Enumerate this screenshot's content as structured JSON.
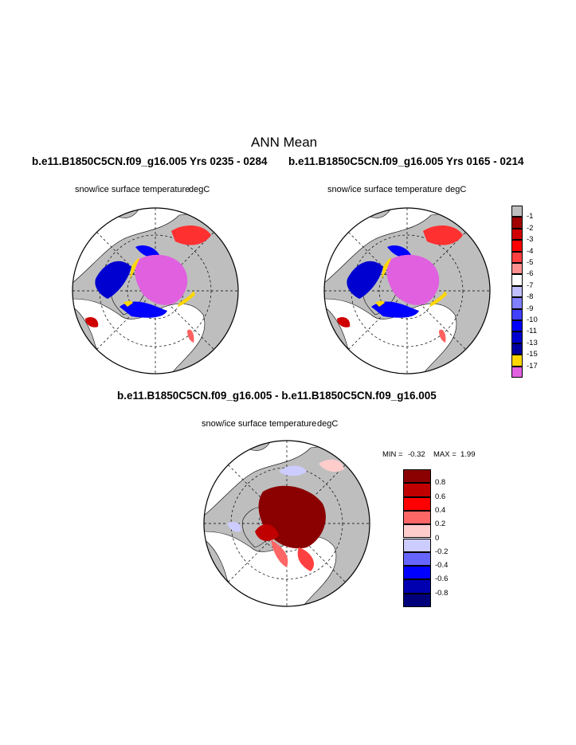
{
  "page_title": "ANN Mean",
  "chart_data": [
    {
      "type": "heatmap",
      "projection": "north polar stereographic",
      "title": "b.e11.B1850C5CN.f09_g16.005  Yrs 0235 - 0284",
      "subtitle_left": "snow/ice surface temperature",
      "subtitle_right": "degC"
    },
    {
      "type": "heatmap",
      "projection": "north polar stereographic",
      "title": "b.e11.B1850C5CN.f09_g16.005  Yrs 0165 - 0214",
      "subtitle_left": "snow/ice surface temperature",
      "subtitle_right": "degC"
    },
    {
      "type": "heatmap",
      "projection": "north polar stereographic",
      "title": "b.e11.B1850C5CN.f09_g16.005 - b.e11.B1850C5CN.f09_g16.005",
      "subtitle_left": "snow/ice surface temperature",
      "subtitle_right": "degC",
      "min_label": "MIN =",
      "min_value": "-0.32",
      "max_label": "MAX =",
      "max_value": "1.99"
    }
  ],
  "colorbar_top": {
    "labels": [
      "-1",
      "-2",
      "-3",
      "-4",
      "-5",
      "-6",
      "-7",
      "-8",
      "-9",
      "-10",
      "-11",
      "-13",
      "-15",
      "-17"
    ],
    "colors": [
      "#bebebe",
      "#a00000",
      "#d00000",
      "#ff0000",
      "#ff4040",
      "#ff9090",
      "#ffffff",
      "#c0c0ff",
      "#8080ff",
      "#4040ff",
      "#0000ff",
      "#0000d0",
      "#0000a0",
      "#ffd700",
      "#e060e0"
    ]
  },
  "colorbar_diff": {
    "labels": [
      "0.8",
      "0.6",
      "0.4",
      "0.2",
      "0",
      "-0.2",
      "-0.4",
      "-0.6",
      "-0.8"
    ],
    "colors": [
      "#8b0000",
      "#c00000",
      "#ff0000",
      "#ff6666",
      "#ffcccc",
      "#ccccff",
      "#6666ff",
      "#0000ff",
      "#0000b0",
      "#00007a"
    ]
  },
  "colors": {
    "land": "#bebebe",
    "magenta": "#e060e0",
    "yellow": "#ffd700"
  }
}
